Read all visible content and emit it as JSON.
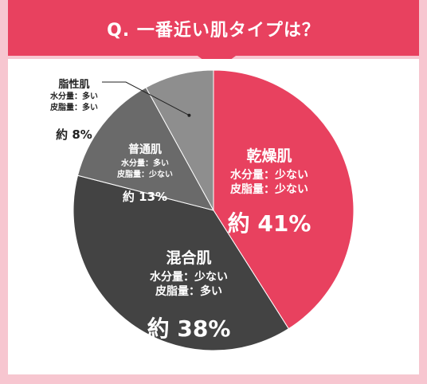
{
  "header": {
    "title": "Q. 一番近い肌タイプは？"
  },
  "colors": {
    "background": "#f7c6d0",
    "header": "#e8415f",
    "panel": "#ffffff"
  },
  "chart_data": {
    "type": "pie",
    "title": "",
    "start_angle_deg": 0,
    "direction": "clockwise",
    "slices": [
      {
        "name": "乾燥肌",
        "value": 41,
        "value_label": "約 41%",
        "detail_lines": [
          "水分量：少ない",
          "皮脂量：少ない"
        ],
        "color": "#e8415f",
        "text_color": "#ffffff"
      },
      {
        "name": "混合肌",
        "value": 38,
        "value_label": "約 38%",
        "detail_lines": [
          "水分量：少ない",
          "皮脂量：多い"
        ],
        "color": "#434343",
        "text_color": "#ffffff"
      },
      {
        "name": "普通肌",
        "value": 13,
        "value_label": "約 13%",
        "detail_lines": [
          "水分量：多い",
          "皮脂量：少ない"
        ],
        "color": "#6a6a6a",
        "text_color": "#ffffff"
      },
      {
        "name": "脂性肌",
        "value": 8,
        "value_label": "約 8%",
        "detail_lines": [
          "水分量：多い",
          "皮脂量：多い"
        ],
        "color": "#8e8e8e",
        "text_color": "#222222"
      }
    ]
  }
}
